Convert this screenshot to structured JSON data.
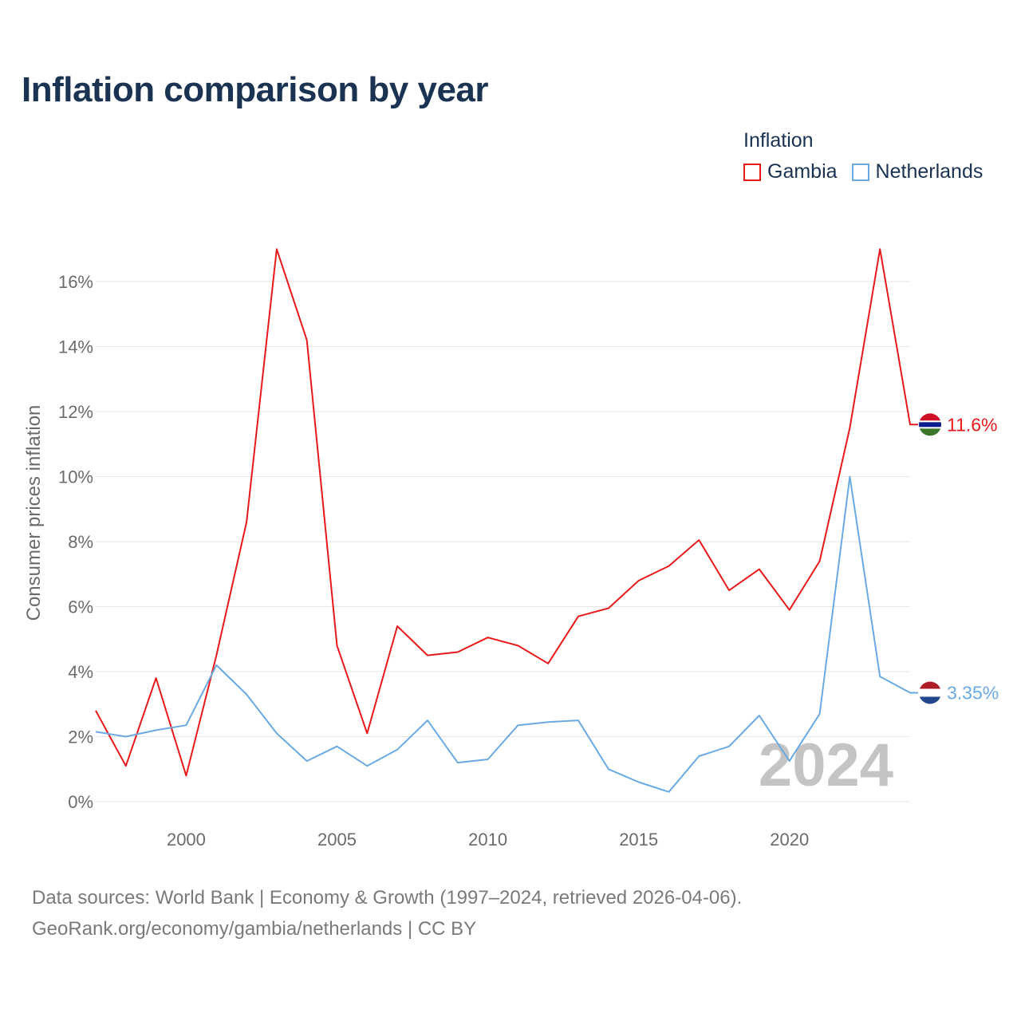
{
  "title": "Inflation comparison by year",
  "legend": {
    "title": "Inflation",
    "items": [
      {
        "name": "Gambia",
        "color": "#e8191b"
      },
      {
        "name": "Netherlands",
        "color": "#6aaae2"
      }
    ]
  },
  "chart_data": {
    "type": "line",
    "title": "Inflation comparison by year",
    "xlabel": "",
    "ylabel": "Consumer prices inflation",
    "xlim": [
      1997,
      2024
    ],
    "ylim": [
      0,
      17
    ],
    "x_ticks": [
      2000,
      2005,
      2010,
      2015,
      2020
    ],
    "y_ticks": [
      0,
      2,
      4,
      6,
      8,
      10,
      12,
      14,
      16
    ],
    "y_tick_labels": [
      "0%",
      "2%",
      "4%",
      "6%",
      "8%",
      "10%",
      "12%",
      "14%",
      "16%"
    ],
    "grid": true,
    "watermark": "2024",
    "x": [
      1997,
      1998,
      1999,
      2000,
      2001,
      2002,
      2003,
      2004,
      2005,
      2006,
      2007,
      2008,
      2009,
      2010,
      2011,
      2012,
      2013,
      2014,
      2015,
      2016,
      2017,
      2018,
      2019,
      2020,
      2021,
      2022,
      2023,
      2024
    ],
    "series": [
      {
        "name": "Gambia",
        "color": "#e8191b",
        "end_label": "11.6%",
        "values": [
          2.8,
          1.1,
          3.8,
          0.8,
          4.5,
          8.6,
          17.0,
          14.2,
          4.8,
          2.1,
          5.4,
          4.5,
          4.6,
          5.05,
          4.8,
          4.25,
          5.7,
          5.95,
          6.8,
          7.25,
          8.05,
          6.5,
          7.15,
          5.9,
          7.4,
          11.5,
          17.0,
          11.6
        ]
      },
      {
        "name": "Netherlands",
        "color": "#6aaae2",
        "end_label": "3.35%",
        "values": [
          2.15,
          2.0,
          2.2,
          2.35,
          4.2,
          3.3,
          2.1,
          1.25,
          1.7,
          1.1,
          1.6,
          2.5,
          1.2,
          1.3,
          2.35,
          2.45,
          2.5,
          1.0,
          0.6,
          0.3,
          1.4,
          1.7,
          2.65,
          1.25,
          2.7,
          10.0,
          3.85,
          3.35
        ]
      }
    ]
  },
  "source": {
    "line1": "Data sources: World Bank | Economy & Growth (1997–2024, retrieved 2026-04-06).",
    "line2": "GeoRank.org/economy/gambia/netherlands | CC BY"
  }
}
